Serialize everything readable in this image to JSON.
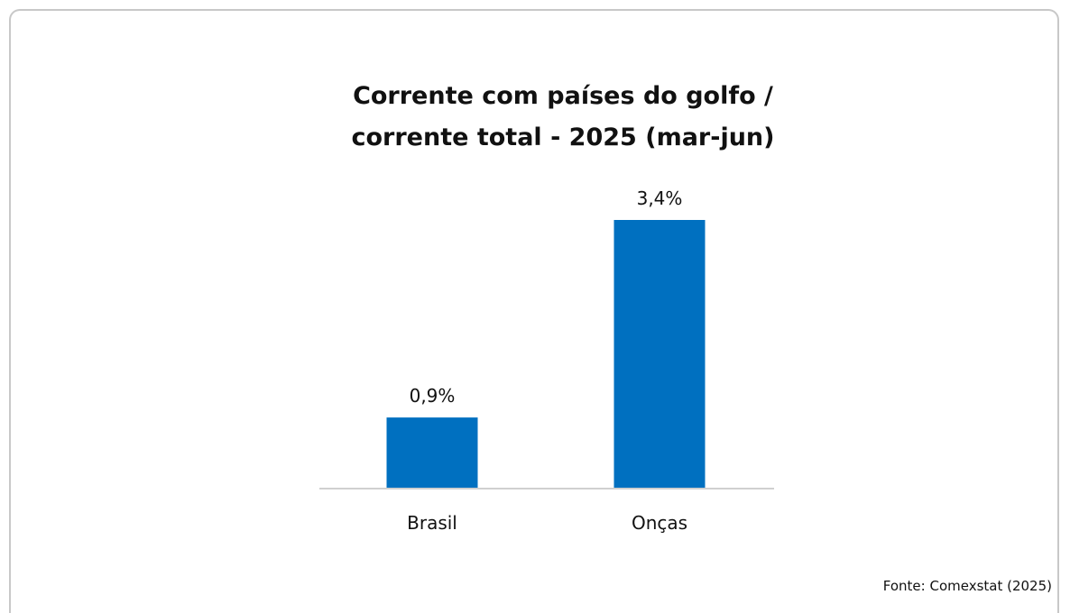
{
  "chart_data": {
    "type": "bar",
    "title": "Corrente com países do golfo / corrente total - 2025 (mar-jun)",
    "title_lines": [
      "Corrente com países do golfo /",
      "corrente total - 2025 (mar-jun)"
    ],
    "categories": [
      "Brasil",
      "Onças"
    ],
    "values": [
      0.9,
      3.4
    ],
    "value_labels": [
      "0,9%",
      "3,4%"
    ],
    "unit": "%",
    "ylim": [
      0,
      3.4
    ],
    "grid": false,
    "legend": "none",
    "bar_color": "#0070C0",
    "axis_color": "#d0d0d0"
  },
  "source": "Fonte: Comexstat (2025)"
}
